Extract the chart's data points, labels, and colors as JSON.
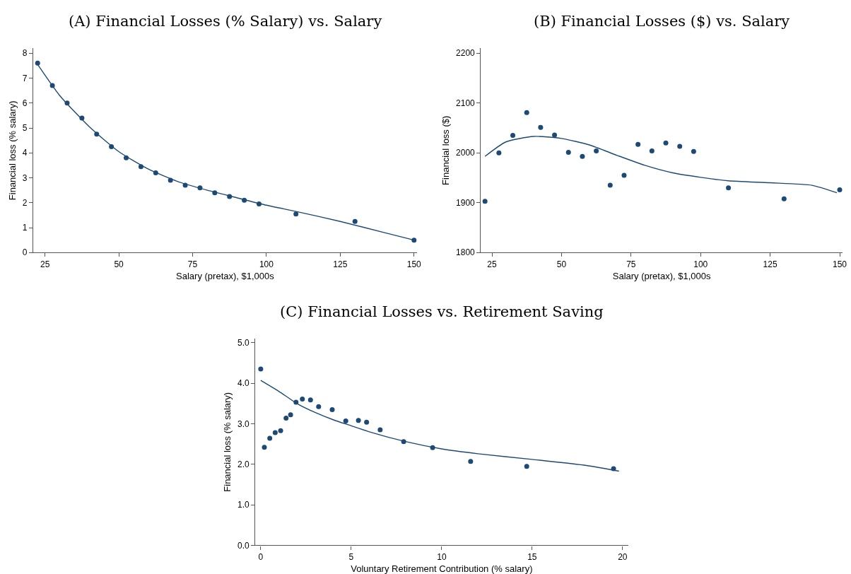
{
  "chart_data": [
    {
      "type": "scatter",
      "title": "(A) Financial Losses (% Salary) vs. Salary",
      "xlabel": "Salary (pretax), $1,000s",
      "ylabel": "Financial loss (% salary)",
      "xlim": [
        21,
        151
      ],
      "xticks": [
        25,
        50,
        75,
        100,
        125,
        150
      ],
      "ylim": [
        0,
        8.2
      ],
      "yticks": [
        0,
        1,
        2,
        3,
        4,
        5,
        6,
        7,
        8
      ],
      "series": [
        {
          "marker": "circle",
          "color": "#1d4a75",
          "x": [
            22.5,
            27.5,
            32.5,
            37.5,
            42.5,
            47.5,
            52.5,
            57.5,
            62.5,
            67.5,
            72.5,
            77.5,
            82.5,
            87.5,
            92.5,
            97.5,
            110,
            130,
            150
          ],
          "values": [
            7.6,
            6.7,
            6.0,
            5.4,
            4.75,
            4.25,
            3.8,
            3.45,
            3.2,
            2.9,
            2.7,
            2.6,
            2.4,
            2.25,
            2.1,
            1.95,
            1.55,
            1.25,
            0.5
          ]
        },
        {
          "type": "line",
          "line_style": "solid",
          "color": "#1d4a75",
          "x": [
            22.5,
            30,
            40,
            50,
            60,
            70,
            80,
            90,
            100,
            110,
            125,
            140,
            150
          ],
          "values": [
            7.55,
            6.3,
            5.05,
            4.05,
            3.35,
            2.85,
            2.5,
            2.2,
            1.9,
            1.65,
            1.25,
            0.8,
            0.5
          ]
        }
      ]
    },
    {
      "type": "scatter",
      "title": "(B) Financial Losses ($) vs. Salary",
      "xlabel": "Salary (pretax), $1,000s",
      "ylabel": "Financial loss ($)",
      "xlim": [
        21,
        151
      ],
      "xticks": [
        25,
        50,
        75,
        100,
        125,
        150
      ],
      "ylim": [
        1800,
        2210
      ],
      "yticks": [
        1800,
        1900,
        2000,
        2100,
        2200
      ],
      "series": [
        {
          "marker": "circle",
          "color": "#1d4a75",
          "x": [
            22.5,
            27.5,
            32.5,
            37.5,
            42.5,
            47.5,
            52.5,
            57.5,
            62.5,
            67.5,
            72.5,
            77.5,
            82.5,
            87.5,
            92.5,
            97.5,
            110,
            130,
            150
          ],
          "values": [
            1903,
            2000,
            2035,
            2081,
            2051,
            2036,
            2001,
            1993,
            2004,
            1935,
            1955,
            2017,
            2004,
            2020,
            2013,
            2003,
            1930,
            1908,
            1926
          ]
        },
        {
          "type": "line",
          "line_style": "solid",
          "color": "#1d4a75",
          "x": [
            22.5,
            30,
            40,
            50,
            60,
            70,
            80,
            90,
            100,
            110,
            125,
            140,
            149
          ],
          "values": [
            1993,
            2022,
            2033,
            2029,
            2016,
            1995,
            1975,
            1960,
            1951,
            1944,
            1940,
            1935,
            1920
          ]
        }
      ]
    },
    {
      "type": "scatter",
      "title": "(C) Financial Losses vs. Retirement Saving",
      "xlabel": "Voluntary Retirement Contribution (% salary)",
      "ylabel": "Financial loss (% salary)",
      "xlim": [
        -0.3,
        20.3
      ],
      "xticks": [
        0,
        5,
        10,
        15,
        20
      ],
      "ylim": [
        0,
        5.1
      ],
      "yticks": [
        {
          "value": 0,
          "label": "0.0"
        },
        {
          "value": 1,
          "label": "1.0"
        },
        {
          "value": 2,
          "label": "2.0"
        },
        {
          "value": 3,
          "label": "3.0"
        },
        {
          "value": 4,
          "label": "4.0"
        },
        {
          "value": 5,
          "label": "5.0"
        }
      ],
      "series": [
        {
          "marker": "circle",
          "color": "#1d4a75",
          "x": [
            0,
            0.2,
            0.5,
            0.8,
            1.1,
            1.4,
            1.65,
            1.95,
            2.3,
            2.75,
            3.2,
            3.95,
            4.7,
            5.4,
            5.85,
            6.6,
            7.9,
            9.5,
            11.6,
            14.7,
            19.5
          ],
          "values": [
            4.35,
            2.42,
            2.64,
            2.78,
            2.83,
            3.14,
            3.22,
            3.53,
            3.61,
            3.59,
            3.42,
            3.35,
            3.07,
            3.08,
            3.04,
            2.85,
            2.56,
            2.41,
            2.07,
            1.95,
            1.89
          ]
        },
        {
          "type": "line",
          "line_style": "solid",
          "color": "#1d4a75",
          "x": [
            0,
            1,
            2,
            3,
            4,
            5,
            6,
            8,
            10,
            12,
            15,
            18,
            19.8
          ],
          "values": [
            4.07,
            3.8,
            3.5,
            3.28,
            3.1,
            2.95,
            2.8,
            2.56,
            2.38,
            2.26,
            2.12,
            1.97,
            1.83
          ]
        }
      ]
    }
  ]
}
